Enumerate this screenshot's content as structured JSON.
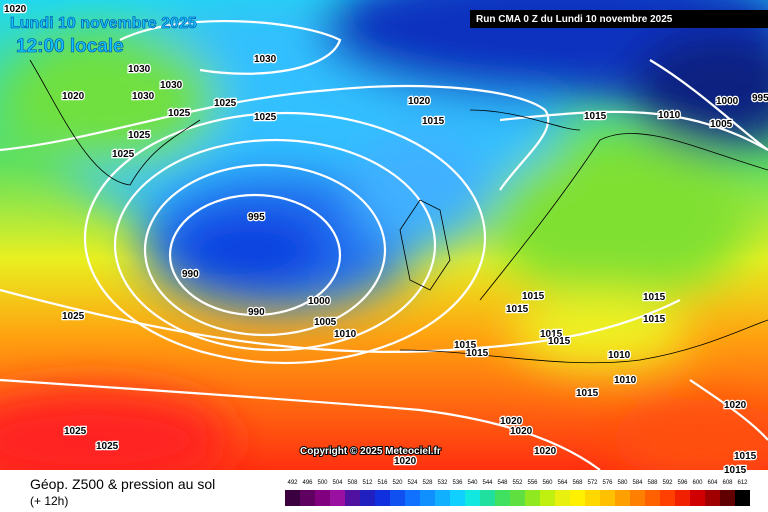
{
  "header": {
    "date": "Lundi 10 novembre 2025",
    "time": "12:00 locale",
    "run": "Run CMA 0 Z du Lundi 10 novembre 2025"
  },
  "copyright": "Copyright © 2025 Meteociel.fr",
  "footer": {
    "title": "Géop. Z500 & pression au sol",
    "lead": "(+ 12h)"
  },
  "legend": {
    "labels": [
      492,
      496,
      500,
      504,
      508,
      512,
      516,
      520,
      524,
      528,
      532,
      536,
      540,
      544,
      548,
      552,
      556,
      560,
      564,
      568,
      572,
      576,
      580,
      584,
      588,
      592,
      596,
      600,
      604,
      608,
      612
    ]
  },
  "isobar_labels": [
    "1020",
    "1030",
    "1030",
    "1030",
    "1020",
    "1030",
    "1025",
    "1025",
    "1025",
    "1025",
    "1025",
    "1020",
    "1015",
    "1015",
    "1010",
    "1005",
    "1000",
    "995",
    "995",
    "990",
    "990",
    "1000",
    "1005",
    "1010",
    "1015",
    "1015",
    "1015",
    "1015",
    "1015",
    "1015",
    "1015",
    "1015",
    "1010",
    "1010",
    "1015",
    "1025",
    "1025",
    "1025",
    "1020",
    "1020",
    "1020",
    "1020",
    "1015",
    "1015",
    "1020"
  ]
}
